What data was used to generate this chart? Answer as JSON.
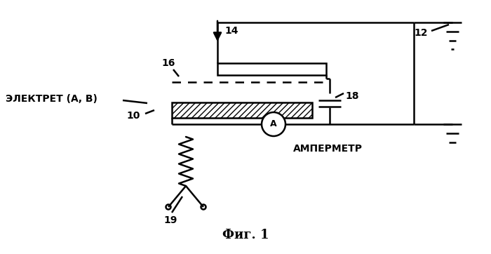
{
  "title": "Фиг. 1",
  "background_color": "#ffffff",
  "label_14": "14",
  "label_16": "16",
  "label_12": "12",
  "label_18": "18",
  "label_10": "10",
  "label_19": "19",
  "label_electret": "ЭЛЕКТРЕТ (А, В)",
  "label_ammeter": "АМПЕРМЕТР",
  "title_fontsize": 13,
  "label_fontsize": 10
}
